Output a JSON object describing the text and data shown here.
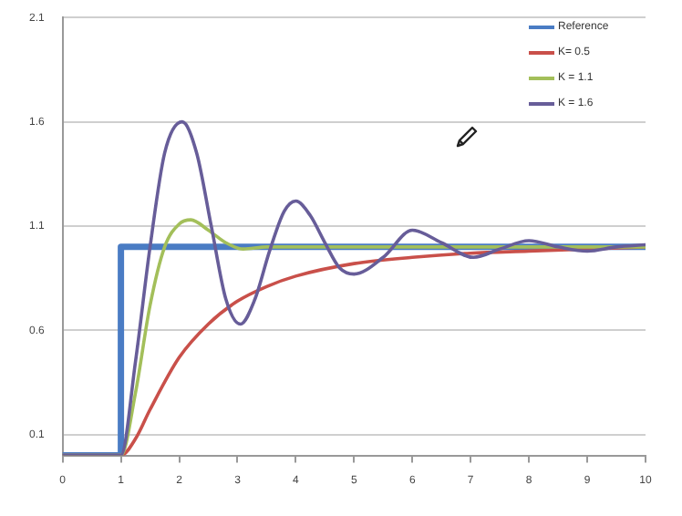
{
  "chart_data": {
    "type": "line",
    "xlim": [
      0,
      10
    ],
    "xticks": [
      0,
      1,
      2,
      3,
      4,
      5,
      6,
      7,
      8,
      9,
      10
    ],
    "ylim": [
      0,
      2.1
    ],
    "yticks": [
      {
        "value": 0,
        "label": null
      },
      0.1,
      0.6,
      1.1,
      1.6,
      2.1
    ],
    "grid": "y",
    "legend": "top right",
    "marker": "none",
    "line_style": "solid",
    "series": [
      {
        "name": "Reference",
        "color": "#4a7cc4",
        "x": [
          0,
          1,
          1,
          10
        ],
        "values": [
          0,
          0,
          1,
          1
        ]
      },
      {
        "name": "K= 0.5",
        "color": "#c9504a",
        "x": [
          0,
          1,
          1.25,
          1.5,
          2,
          2.5,
          3,
          3.5,
          4,
          5,
          6,
          7,
          8,
          9,
          10
        ],
        "values": [
          0,
          0,
          0.08,
          0.22,
          0.47,
          0.63,
          0.74,
          0.81,
          0.86,
          0.92,
          0.95,
          0.97,
          0.98,
          0.99,
          1
        ]
      },
      {
        "name": "K = 1.1",
        "color": "#a3bf5a",
        "x": [
          0,
          1,
          1.25,
          1.5,
          1.75,
          2,
          2.2,
          2.5,
          2.8,
          3.1,
          3.5,
          4,
          5,
          10
        ],
        "values": [
          0,
          0,
          0.3,
          0.72,
          1,
          1.11,
          1.13,
          1.08,
          1.02,
          0.99,
          1,
          1,
          1,
          1
        ]
      },
      {
        "name": "K = 1.6",
        "color": "#675d99",
        "x": [
          0,
          1,
          1.25,
          1.5,
          1.75,
          2.05,
          2.3,
          2.55,
          2.8,
          3.05,
          3.3,
          3.55,
          3.8,
          4,
          4.25,
          4.5,
          4.75,
          5,
          5.5,
          6,
          6.5,
          7.05,
          7.5,
          8,
          8.5,
          9,
          9.5,
          10
        ],
        "values": [
          0,
          0,
          0.45,
          1,
          1.45,
          1.6,
          1.45,
          1.1,
          0.75,
          0.63,
          0.75,
          0.98,
          1.17,
          1.22,
          1.15,
          1.02,
          0.9,
          0.87,
          0.95,
          1.08,
          1.02,
          0.95,
          0.99,
          1.03,
          1,
          0.98,
          1,
          1.01
        ]
      }
    ]
  }
}
